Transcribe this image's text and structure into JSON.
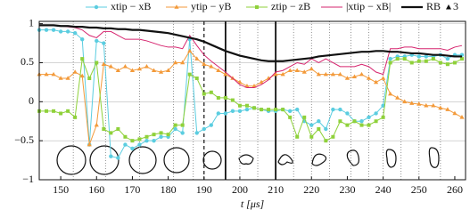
{
  "chart_data": {
    "type": "line",
    "xlabel": "t [μs]",
    "x": [
      144,
      146,
      148,
      150,
      152,
      154,
      156,
      158,
      160,
      162,
      164,
      166,
      168,
      170,
      172,
      174,
      176,
      178,
      180,
      182,
      184,
      186,
      188,
      190,
      192,
      194,
      196,
      198,
      200,
      202,
      204,
      206,
      208,
      210,
      212,
      214,
      216,
      218,
      220,
      222,
      224,
      226,
      228,
      230,
      232,
      234,
      236,
      238,
      240,
      242,
      244,
      246,
      248,
      250,
      252,
      254,
      256,
      258,
      260,
      262
    ],
    "series": [
      {
        "name": "xtip − xB",
        "color": "#5bcde0",
        "marker": "circle",
        "width": 1,
        "values": [
          0.92,
          0.92,
          0.92,
          0.9,
          0.9,
          0.88,
          0.8,
          -0.55,
          0.78,
          0.75,
          -0.7,
          -0.72,
          -0.55,
          -0.6,
          -0.55,
          -0.5,
          -0.5,
          -0.45,
          -0.45,
          -0.35,
          -0.4,
          0.8,
          -0.4,
          -0.35,
          -0.3,
          -0.15,
          -0.15,
          -0.12,
          -0.12,
          -0.1,
          -0.08,
          -0.1,
          -0.12,
          -0.12,
          -0.1,
          -0.12,
          -0.1,
          -0.25,
          -0.3,
          -0.25,
          -0.35,
          -0.1,
          -0.1,
          -0.15,
          -0.25,
          -0.25,
          -0.2,
          -0.15,
          -0.05,
          0.55,
          0.58,
          0.58,
          0.6,
          0.58,
          0.58,
          0.58,
          0.6,
          0.55,
          0.6,
          0.6
        ]
      },
      {
        "name": "ytip − yB",
        "color": "#f39a3a",
        "marker": "triangle",
        "width": 1,
        "values": [
          0.35,
          0.35,
          0.35,
          0.3,
          0.3,
          0.38,
          0.33,
          -0.55,
          -0.3,
          0.48,
          0.45,
          0.4,
          0.45,
          0.4,
          0.42,
          0.45,
          0.4,
          0.38,
          0.4,
          0.5,
          0.5,
          0.65,
          0.55,
          0.48,
          0.45,
          0.4,
          0.35,
          0.3,
          0.25,
          0.2,
          0.2,
          0.25,
          0.3,
          0.35,
          0.35,
          0.4,
          0.4,
          0.38,
          0.42,
          0.35,
          0.35,
          0.35,
          0.35,
          0.3,
          0.32,
          0.35,
          0.3,
          0.25,
          0.3,
          0.1,
          0.05,
          0,
          -0.02,
          -0.03,
          -0.05,
          -0.05,
          -0.08,
          -0.1,
          -0.15,
          -0.2
        ]
      },
      {
        "name": "ztip − zB",
        "color": "#8fd13a",
        "marker": "square",
        "width": 1,
        "values": [
          -0.12,
          -0.12,
          -0.12,
          -0.15,
          -0.12,
          -0.2,
          0.55,
          0.3,
          0.5,
          -0.35,
          -0.4,
          -0.35,
          -0.45,
          -0.5,
          -0.48,
          -0.45,
          -0.42,
          -0.4,
          -0.42,
          -0.3,
          -0.3,
          0.35,
          0.3,
          0.1,
          0.12,
          0.05,
          0.05,
          0.02,
          -0.05,
          -0.05,
          -0.08,
          -0.1,
          -0.1,
          -0.1,
          -0.1,
          -0.2,
          -0.45,
          -0.2,
          -0.45,
          -0.35,
          -0.5,
          -0.45,
          -0.25,
          -0.3,
          -0.25,
          -0.3,
          -0.3,
          -0.25,
          -0.2,
          0.5,
          0.55,
          0.55,
          0.5,
          0.52,
          0.52,
          0.55,
          0.5,
          0.48,
          0.5,
          0.55
        ]
      },
      {
        "name": "|xtip − xB|",
        "color": "#d6246e",
        "marker": "none",
        "width": 1,
        "values": [
          0.98,
          0.98,
          0.98,
          0.97,
          0.96,
          0.95,
          0.92,
          0.85,
          0.82,
          0.9,
          0.9,
          0.85,
          0.8,
          0.8,
          0.8,
          0.78,
          0.75,
          0.72,
          0.7,
          0.7,
          0.68,
          0.85,
          0.72,
          0.6,
          0.52,
          0.45,
          0.38,
          0.3,
          0.22,
          0.18,
          0.18,
          0.22,
          0.28,
          0.38,
          0.4,
          0.45,
          0.5,
          0.48,
          0.55,
          0.5,
          0.55,
          0.5,
          0.45,
          0.45,
          0.45,
          0.48,
          0.45,
          0.38,
          0.35,
          0.68,
          0.68,
          0.7,
          0.7,
          0.68,
          0.68,
          0.68,
          0.68,
          0.66,
          0.7,
          0.72
        ]
      },
      {
        "name": "RB",
        "color": "#111111",
        "marker": "none",
        "width": 2.2,
        "values": [
          0.98,
          0.98,
          0.98,
          0.97,
          0.97,
          0.96,
          0.96,
          0.95,
          0.95,
          0.94,
          0.94,
          0.93,
          0.93,
          0.92,
          0.92,
          0.91,
          0.9,
          0.89,
          0.88,
          0.86,
          0.84,
          0.82,
          0.8,
          0.77,
          0.73,
          0.69,
          0.65,
          0.62,
          0.59,
          0.57,
          0.55,
          0.53,
          0.52,
          0.52,
          0.52,
          0.53,
          0.54,
          0.55,
          0.56,
          0.58,
          0.59,
          0.6,
          0.61,
          0.62,
          0.63,
          0.64,
          0.64,
          0.65,
          0.65,
          0.64,
          0.64,
          0.63,
          0.62,
          0.62,
          0.61,
          0.6,
          0.6,
          0.59,
          0.58,
          0.58
        ]
      }
    ],
    "legend_extra": "3",
    "xlim": [
      144,
      263
    ],
    "ylim": [
      -1,
      1.03
    ],
    "xticks": [
      150,
      160,
      170,
      180,
      190,
      200,
      210,
      220,
      230,
      240,
      250,
      260
    ],
    "yticks": [
      {
        "value": -1,
        "label": "−1"
      },
      {
        "value": -0.5,
        "label": "−0.5"
      },
      0,
      0.5,
      1
    ],
    "vlines": {
      "dotted": [
        153.5,
        162.5,
        172,
        181.5,
        187,
        200,
        205,
        215,
        220,
        225,
        231,
        236,
        240,
        245,
        250,
        256
      ],
      "dashed": [
        190
      ],
      "solid": [
        196,
        210
      ]
    }
  }
}
